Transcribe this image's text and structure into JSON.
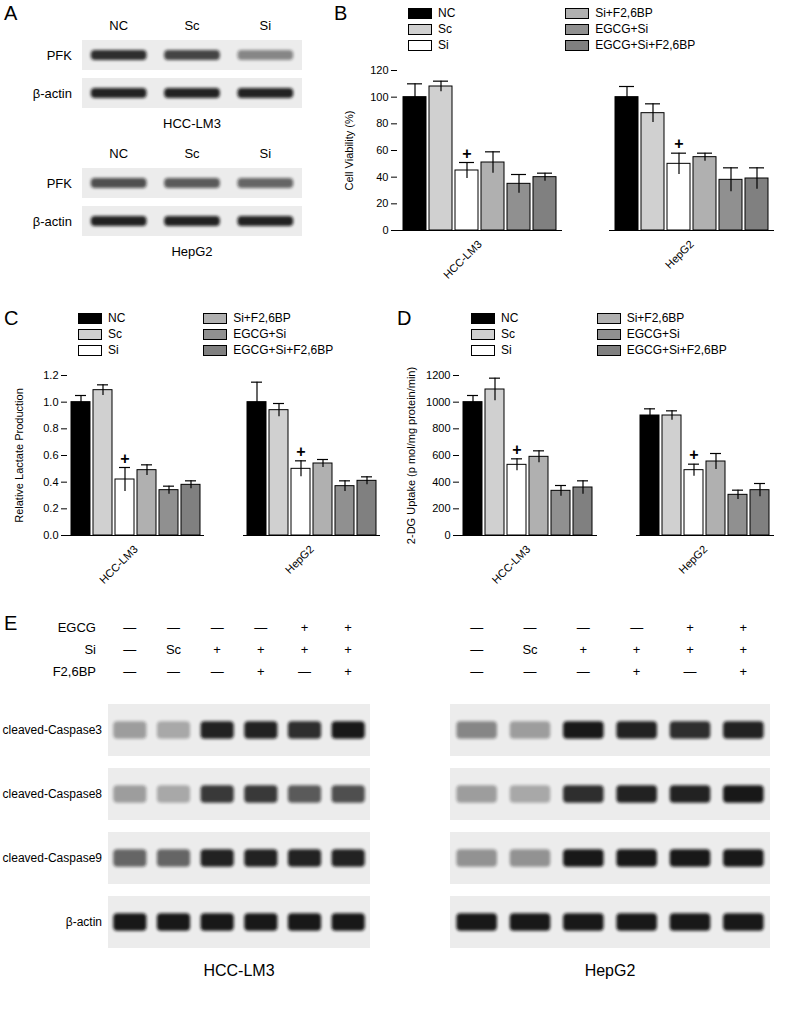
{
  "chart_data": [
    {
      "type": "blot",
      "title": "A",
      "blots": [
        {
          "label": "HCC-LM3",
          "lanes": [
            "NC",
            "Sc",
            "Si"
          ],
          "bands": [
            {
              "name": "PFK",
              "intensity": [
                0.85,
                0.75,
                0.45
              ]
            },
            {
              "name": "β-actin",
              "intensity": [
                0.9,
                0.9,
                0.9
              ]
            }
          ]
        },
        {
          "label": "HepG2",
          "lanes": [
            "NC",
            "Sc",
            "Si"
          ],
          "bands": [
            {
              "name": "PFK",
              "intensity": [
                0.7,
                0.65,
                0.6
              ]
            },
            {
              "name": "β-actin",
              "intensity": [
                0.9,
                0.9,
                0.9
              ]
            }
          ]
        }
      ]
    },
    {
      "type": "bar",
      "title": "B",
      "ylabel": "Cell Viability (%)",
      "legend": "top",
      "categories": [
        "HCC-LM3",
        "HepG2"
      ],
      "ylim": [
        0,
        120
      ],
      "yticks": [
        0,
        20,
        40,
        60,
        80,
        100,
        120
      ],
      "series": [
        {
          "name": "NC",
          "color": "#000000",
          "values": [
            100,
            100
          ],
          "errors": [
            10,
            8
          ]
        },
        {
          "name": "Sc",
          "color": "#d0d0d0",
          "values": [
            108,
            88
          ],
          "errors": [
            4,
            7
          ]
        },
        {
          "name": "Si",
          "color": "#ffffff",
          "values": [
            45,
            50
          ],
          "errors": [
            6,
            8
          ]
        },
        {
          "name": "Si+F2,6BP",
          "color": "#b0b0b0",
          "values": [
            51,
            55
          ],
          "errors": [
            8,
            3
          ]
        },
        {
          "name": "EGCG+Si",
          "color": "#909090",
          "values": [
            35,
            38
          ],
          "errors": [
            7,
            9
          ]
        },
        {
          "name": "EGCG+Si+F2,6BP",
          "color": "#808080",
          "values": [
            40,
            39
          ],
          "errors": [
            3,
            8
          ]
        }
      ],
      "annotations": [
        {
          "text": "+",
          "series": "Si",
          "category": "HCC-LM3"
        },
        {
          "text": "+",
          "series": "Si",
          "category": "HepG2"
        }
      ]
    },
    {
      "type": "bar",
      "title": "C",
      "ylabel": "Relative Lactate Production",
      "legend": "top",
      "categories": [
        "HCC-LM3",
        "HepG2"
      ],
      "ylim": [
        0,
        1.2
      ],
      "yticks": [
        {
          "value": 0,
          "label": "0.0"
        },
        0.2,
        0.4,
        0.6,
        0.8,
        {
          "value": 1,
          "label": "1.0"
        },
        1.2
      ],
      "series": [
        {
          "name": "NC",
          "color": "#000000",
          "values": [
            1.0,
            1.0
          ],
          "errors": [
            0.05,
            0.15
          ]
        },
        {
          "name": "Sc",
          "color": "#d0d0d0",
          "values": [
            1.09,
            0.94
          ],
          "errors": [
            0.04,
            0.05
          ]
        },
        {
          "name": "Si",
          "color": "#ffffff",
          "values": [
            0.42,
            0.5
          ],
          "errors": [
            0.09,
            0.06
          ]
        },
        {
          "name": "Si+F2,6BP",
          "color": "#b0b0b0",
          "values": [
            0.49,
            0.54
          ],
          "errors": [
            0.04,
            0.03
          ]
        },
        {
          "name": "EGCG+Si",
          "color": "#909090",
          "values": [
            0.34,
            0.37
          ],
          "errors": [
            0.03,
            0.04
          ]
        },
        {
          "name": "EGCG+Si+F2,6BP",
          "color": "#808080",
          "values": [
            0.38,
            0.41
          ],
          "errors": [
            0.03,
            0.03
          ]
        }
      ],
      "annotations": [
        {
          "text": "+",
          "series": "Si",
          "category": "HCC-LM3"
        },
        {
          "text": "+",
          "series": "Si",
          "category": "HepG2"
        }
      ]
    },
    {
      "type": "bar",
      "title": "D",
      "ylabel": "2-DG Uptake (p mol/mg protein/min)",
      "legend": "top",
      "categories": [
        "HCC-LM3",
        "HepG2"
      ],
      "ylim": [
        0,
        1200
      ],
      "yticks": [
        0,
        200,
        400,
        600,
        800,
        1000,
        1200
      ],
      "series": [
        {
          "name": "NC",
          "color": "#000000",
          "values": [
            1000,
            900
          ],
          "errors": [
            50,
            50
          ]
        },
        {
          "name": "Sc",
          "color": "#d0d0d0",
          "values": [
            1095,
            900
          ],
          "errors": [
            85,
            35
          ]
        },
        {
          "name": "Si",
          "color": "#ffffff",
          "values": [
            530,
            490
          ],
          "errors": [
            45,
            45
          ]
        },
        {
          "name": "Si+F2,6BP",
          "color": "#b0b0b0",
          "values": [
            590,
            555
          ],
          "errors": [
            45,
            60
          ]
        },
        {
          "name": "EGCG+Si",
          "color": "#909090",
          "values": [
            335,
            305
          ],
          "errors": [
            40,
            35
          ]
        },
        {
          "name": "EGCG+Si+F2,6BP",
          "color": "#808080",
          "values": [
            360,
            340
          ],
          "errors": [
            50,
            50
          ]
        }
      ],
      "annotations": [
        {
          "text": "+",
          "series": "Si",
          "category": "HCC-LM3"
        },
        {
          "text": "+",
          "series": "Si",
          "category": "HepG2"
        }
      ]
    },
    {
      "type": "blot",
      "title": "E",
      "conditions": [
        "EGCG",
        "Si",
        "F2,6BP"
      ],
      "band_names": [
        "cleaved-Caspase3",
        "cleaved-Caspase8",
        "cleaved-Caspase9",
        "β-actin"
      ],
      "blots": [
        {
          "label": "HCC-LM3",
          "marks": [
            [
              "—",
              "—",
              "—",
              "—",
              "+",
              "+"
            ],
            [
              "—",
              "Sc",
              "+",
              "+",
              "+",
              "+"
            ],
            [
              "—",
              "—",
              "—",
              "+",
              "—",
              "+"
            ]
          ],
          "intensity": [
            [
              0.35,
              0.3,
              0.9,
              0.9,
              0.85,
              0.95
            ],
            [
              0.35,
              0.3,
              0.8,
              0.8,
              0.65,
              0.7
            ],
            [
              0.6,
              0.6,
              0.9,
              0.9,
              0.9,
              0.9
            ],
            [
              0.95,
              0.95,
              0.95,
              0.95,
              0.95,
              0.95
            ]
          ]
        },
        {
          "label": "HepG2",
          "marks": [
            [
              "—",
              "—",
              "—",
              "—",
              "+",
              "+"
            ],
            [
              "—",
              "Sc",
              "+",
              "+",
              "+",
              "+"
            ],
            [
              "—",
              "—",
              "—",
              "+",
              "—",
              "+"
            ]
          ],
          "intensity": [
            [
              0.45,
              0.35,
              0.95,
              0.9,
              0.85,
              0.9
            ],
            [
              0.35,
              0.3,
              0.85,
              0.9,
              0.9,
              0.95
            ],
            [
              0.4,
              0.4,
              0.95,
              0.95,
              0.95,
              0.95
            ],
            [
              0.95,
              0.95,
              0.95,
              0.95,
              0.95,
              0.95
            ]
          ]
        }
      ]
    }
  ]
}
